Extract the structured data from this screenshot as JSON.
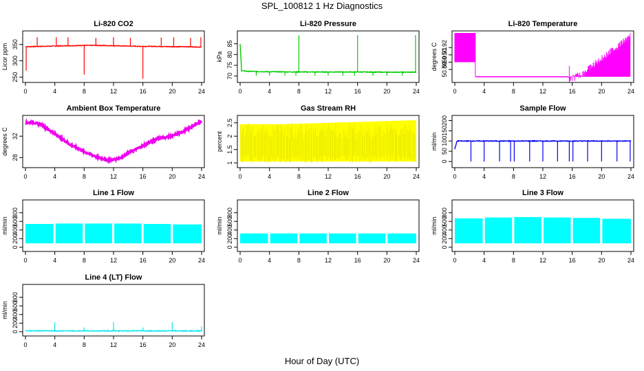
{
  "page": {
    "title": "SPL_100812  1 Hz Diagnostics",
    "xlabel": "Hour of Day (UTC)"
  },
  "colors": {
    "co2": "#ff0000",
    "pressure": "#00cc00",
    "temperature": "#ff00ff",
    "ambient": "#ee00ee",
    "rh": "#ffff00",
    "sample_flow": "#0000ee",
    "line_flow": "#00ffff",
    "line4_flow": "#00e5ee"
  },
  "chart_data": [
    {
      "type": "line",
      "title": "Li-820 CO2",
      "ylabel": "Licor ppm",
      "xlim": [
        0,
        24
      ],
      "x_ticks": [
        0,
        4,
        8,
        12,
        16,
        20,
        24
      ],
      "ylim": [
        240,
        385
      ],
      "y_ticks": [
        250,
        300,
        350
      ],
      "color": "co2",
      "series": [
        {
          "x": [
            0,
            2,
            4,
            6,
            8,
            10,
            12,
            14,
            16,
            18,
            20,
            22,
            24
          ],
          "values": [
            343,
            344,
            345,
            346,
            347,
            347,
            346,
            345,
            344,
            344,
            343,
            343,
            342
          ]
        }
      ],
      "spikes": [
        {
          "x": 0.1,
          "value": 270
        },
        {
          "x": 1.6,
          "value": 372
        },
        {
          "x": 4.2,
          "value": 372
        },
        {
          "x": 5.8,
          "value": 372
        },
        {
          "x": 8.0,
          "value": 258
        },
        {
          "x": 9.6,
          "value": 370
        },
        {
          "x": 12.0,
          "value": 372
        },
        {
          "x": 14.3,
          "value": 370
        },
        {
          "x": 16.0,
          "value": 245
        },
        {
          "x": 18.5,
          "value": 371
        },
        {
          "x": 20.2,
          "value": 372
        },
        {
          "x": 22.5,
          "value": 370
        },
        {
          "x": 23.9,
          "value": 372
        }
      ]
    },
    {
      "type": "line",
      "title": "Li-820 Pressure",
      "ylabel": "kPa",
      "xlim": [
        0,
        24
      ],
      "x_ticks": [
        0,
        4,
        8,
        12,
        16,
        20,
        24
      ],
      "ylim": [
        68,
        90
      ],
      "y_ticks": [
        70,
        75,
        80,
        85
      ],
      "color": "pressure",
      "series": [
        {
          "x": [
            0,
            0.2,
            1,
            4,
            8,
            12,
            16,
            20,
            24
          ],
          "values": [
            85,
            72.5,
            72.2,
            72,
            71.9,
            71.9,
            71.9,
            71.8,
            71.8
          ]
        }
      ],
      "spikes": [
        {
          "x": 8.0,
          "value": 89
        },
        {
          "x": 16.0,
          "value": 89
        },
        {
          "x": 23.9,
          "value": 89
        },
        {
          "x": 2.2,
          "value": 70.2
        },
        {
          "x": 4.0,
          "value": 70.2
        },
        {
          "x": 6.1,
          "value": 70.2
        },
        {
          "x": 7.6,
          "value": 70.2
        },
        {
          "x": 10.2,
          "value": 70.2
        },
        {
          "x": 12.0,
          "value": 70.2
        },
        {
          "x": 14.0,
          "value": 70.2
        },
        {
          "x": 15.6,
          "value": 70.2
        },
        {
          "x": 18.1,
          "value": 70.2
        },
        {
          "x": 20.0,
          "value": 70.2
        },
        {
          "x": 22.1,
          "value": 70.2
        }
      ]
    },
    {
      "type": "area",
      "title": "Li-820 Temperature",
      "ylabel": "degrees C",
      "xlim": [
        0,
        24
      ],
      "x_ticks": [
        0,
        4,
        8,
        12,
        16,
        20,
        24
      ],
      "ylim": [
        50.875,
        50.94
      ],
      "y_ticks": [
        50.89,
        50.9,
        50.91,
        50.92
      ],
      "color": "temperature",
      "series": [
        {
          "x": [
            0,
            2.8,
            2.8,
            3.5,
            4.5,
            15.5,
            17.5,
            23.9
          ],
          "values": [
            50.94,
            50.94,
            50.9,
            50.89,
            50.88,
            50.88,
            50.89,
            50.94
          ]
        }
      ]
    },
    {
      "type": "line",
      "title": "Ambient Box Temperature",
      "ylabel": "degrees C",
      "xlim": [
        0,
        24
      ],
      "x_ticks": [
        0,
        4,
        8,
        12,
        16,
        20,
        24
      ],
      "ylim": [
        26.5,
        35.5
      ],
      "y_ticks": [
        28,
        32
      ],
      "color": "ambient",
      "series": [
        {
          "x": [
            0,
            1,
            2,
            4,
            6,
            8,
            10,
            11,
            12,
            13,
            14,
            16,
            18,
            20,
            22,
            24
          ],
          "values": [
            34.5,
            34.6,
            34.2,
            32.5,
            30.5,
            29.1,
            28.0,
            27.6,
            27.6,
            28.0,
            28.8,
            30.2,
            31.6,
            32.0,
            33.2,
            34.9
          ]
        }
      ]
    },
    {
      "type": "area",
      "title": "Gas Stream RH",
      "ylabel": "percent",
      "xlim": [
        0,
        24
      ],
      "x_ticks": [
        0,
        4,
        8,
        12,
        16,
        20,
        24
      ],
      "ylim": [
        0.9,
        2.7
      ],
      "y_ticks": [
        1.0,
        1.5,
        2.0,
        2.5
      ],
      "color": "rh",
      "series": [
        {
          "name": "upper",
          "x": [
            0,
            6,
            12,
            18,
            24
          ],
          "values": [
            2.45,
            2.45,
            2.5,
            2.55,
            2.6
          ]
        }
      ]
    },
    {
      "type": "line",
      "title": "Sample Flow",
      "ylabel": "ml/min",
      "xlim": [
        0,
        24
      ],
      "x_ticks": [
        0,
        4,
        8,
        12,
        16,
        20,
        24
      ],
      "ylim": [
        -20,
        215
      ],
      "y_ticks": [
        0,
        50,
        100,
        150,
        200
      ],
      "color": "sample_flow",
      "series": [
        {
          "x": [
            0,
            0.3,
            24
          ],
          "values": [
            60,
            100,
            100
          ]
        }
      ],
      "spikes": [
        {
          "x": 2.2,
          "value": 0
        },
        {
          "x": 4.0,
          "value": 0
        },
        {
          "x": 6.1,
          "value": 0
        },
        {
          "x": 7.6,
          "value": 0
        },
        {
          "x": 8.1,
          "value": 0
        },
        {
          "x": 10.2,
          "value": 0
        },
        {
          "x": 12.0,
          "value": 0
        },
        {
          "x": 14.0,
          "value": 0
        },
        {
          "x": 15.6,
          "value": 0
        },
        {
          "x": 16.1,
          "value": 0
        },
        {
          "x": 18.1,
          "value": 0
        },
        {
          "x": 20.0,
          "value": 0
        },
        {
          "x": 22.1,
          "value": 0
        },
        {
          "x": 23.9,
          "value": 0
        }
      ]
    },
    {
      "type": "area",
      "title": "Line 1 Flow",
      "ylabel": "ml/min",
      "xlim": [
        0,
        24
      ],
      "x_ticks": [
        0,
        4,
        8,
        12,
        16,
        20,
        24
      ],
      "ylim": [
        -50,
        1050
      ],
      "y_ticks": [
        0,
        200,
        400,
        600,
        800
      ],
      "color": "line_flow",
      "bands": [
        {
          "x0": 0,
          "x1": 3.8,
          "low": 90,
          "high": 540
        },
        {
          "x0": 4.1,
          "x1": 7.8,
          "low": 90,
          "high": 550
        },
        {
          "x0": 8.1,
          "x1": 11.8,
          "low": 90,
          "high": 550
        },
        {
          "x0": 12.1,
          "x1": 15.8,
          "low": 90,
          "high": 550
        },
        {
          "x0": 16.1,
          "x1": 19.8,
          "low": 90,
          "high": 540
        },
        {
          "x0": 20.1,
          "x1": 24,
          "low": 90,
          "high": 530
        }
      ]
    },
    {
      "type": "area",
      "title": "Line 2 Flow",
      "ylabel": "ml/min",
      "xlim": [
        0,
        24
      ],
      "x_ticks": [
        0,
        4,
        8,
        12,
        16,
        20,
        24
      ],
      "ylim": [
        -50,
        1050
      ],
      "y_ticks": [
        0,
        200,
        400,
        600,
        800
      ],
      "color": "line_flow",
      "bands": [
        {
          "x0": 0,
          "x1": 3.8,
          "low": 90,
          "high": 320
        },
        {
          "x0": 4.1,
          "x1": 7.8,
          "low": 90,
          "high": 320
        },
        {
          "x0": 8.1,
          "x1": 11.8,
          "low": 90,
          "high": 320
        },
        {
          "x0": 12.1,
          "x1": 15.8,
          "low": 90,
          "high": 320
        },
        {
          "x0": 16.1,
          "x1": 19.8,
          "low": 90,
          "high": 320
        },
        {
          "x0": 20.1,
          "x1": 24,
          "low": 90,
          "high": 320
        }
      ]
    },
    {
      "type": "area",
      "title": "Line 3 Flow",
      "ylabel": "ml/min",
      "xlim": [
        0,
        24
      ],
      "x_ticks": [
        0,
        4,
        8,
        12,
        16,
        20,
        24
      ],
      "ylim": [
        -50,
        1050
      ],
      "y_ticks": [
        0,
        200,
        400,
        600,
        800
      ],
      "color": "line_flow",
      "bands": [
        {
          "x0": 0,
          "x1": 3.8,
          "low": 90,
          "high": 670
        },
        {
          "x0": 4.1,
          "x1": 7.8,
          "low": 90,
          "high": 690
        },
        {
          "x0": 8.1,
          "x1": 11.8,
          "low": 90,
          "high": 700
        },
        {
          "x0": 12.1,
          "x1": 15.8,
          "low": 90,
          "high": 690
        },
        {
          "x0": 16.1,
          "x1": 19.8,
          "low": 90,
          "high": 680
        },
        {
          "x0": 20.1,
          "x1": 24,
          "low": 90,
          "high": 660
        }
      ]
    },
    {
      "type": "line",
      "title": "Line 4 (LT) Flow",
      "ylabel": "ml/min",
      "xlim": [
        0,
        24
      ],
      "x_ticks": [
        0,
        4,
        8,
        12,
        16,
        20,
        24
      ],
      "ylim": [
        -50,
        1050
      ],
      "y_ticks": [
        0,
        200,
        400,
        600,
        800
      ],
      "color": "line4_flow",
      "series": [
        {
          "x": [
            0,
            24
          ],
          "values": [
            20,
            20
          ]
        }
      ],
      "spikes": [
        {
          "x": 4.0,
          "value": 220
        },
        {
          "x": 8.0,
          "value": 100
        },
        {
          "x": 12.0,
          "value": 220
        },
        {
          "x": 16.0,
          "value": 100
        },
        {
          "x": 20.0,
          "value": 220
        },
        {
          "x": 24.0,
          "value": 120
        }
      ]
    }
  ]
}
